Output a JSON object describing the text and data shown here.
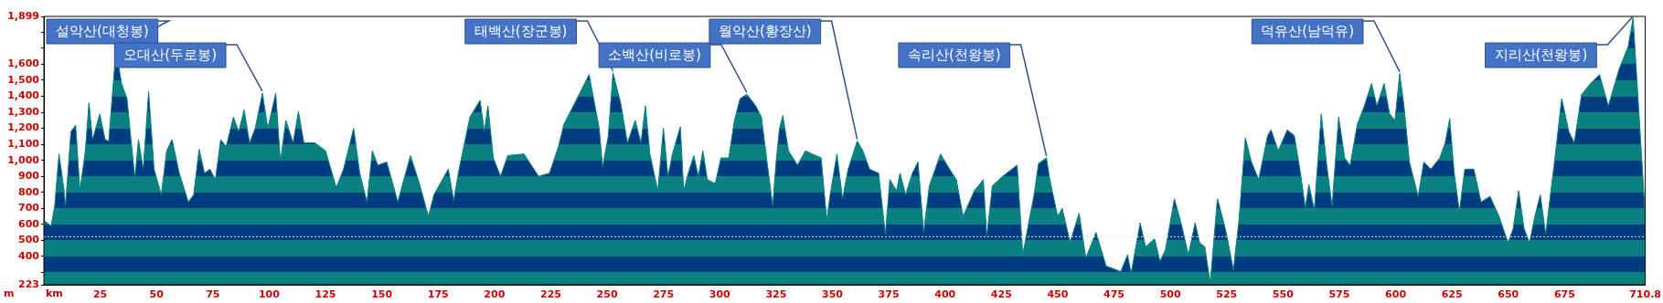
{
  "chart_data": {
    "type": "area",
    "xlabel": "km",
    "ylabel": "m",
    "xlim": [
      0,
      710.8
    ],
    "xticks": [
      25,
      50,
      75,
      100,
      125,
      150,
      175,
      200,
      225,
      250,
      275,
      300,
      325,
      350,
      375,
      400,
      425,
      450,
      475,
      500,
      525,
      550,
      575,
      600,
      625,
      650,
      675,
      710.8
    ],
    "ylim": [
      223,
      1899
    ],
    "yticks": [
      223,
      {
        "value": 300,
        "label": null
      },
      400,
      500,
      600,
      700,
      800,
      900,
      {
        "value": 1000,
        "label": "1,000"
      },
      {
        "value": 1100,
        "label": "1,100"
      },
      {
        "value": 1200,
        "label": "1,200"
      },
      {
        "value": 1300,
        "label": "1,300"
      },
      {
        "value": 1400,
        "label": "1,400"
      },
      {
        "value": 1500,
        "label": "1,500"
      },
      {
        "value": 1600,
        "label": "1,600"
      },
      {
        "value": 1700,
        "label": null
      },
      {
        "value": 1800,
        "label": null
      },
      {
        "value": 1899,
        "label": "1,899"
      }
    ],
    "series": [
      {
        "color": "#0a8080",
        "x": [
          0,
          3.2,
          4.8,
          6.7,
          8.8,
          9.6,
          12,
          14.1,
          16,
          18.4,
          20,
          21.6,
          24.8,
          27.2,
          28.8,
          30.4,
          32,
          34.5,
          36.9,
          38.8,
          40.4,
          42,
          44.1,
          46.5,
          48.9,
          52.1,
          54.5,
          56.9,
          60.1,
          64.1,
          66.5,
          68.9,
          71.3,
          73.7,
          76.1,
          78.5,
          80.9,
          84.1,
          86.5,
          88.9,
          91.3,
          93.8,
          97,
          99.4,
          102.9,
          105,
          107.4,
          110.6,
          113,
          115.4,
          120.2,
          125,
          129.8,
          133,
          137.5,
          140.2,
          143.4,
          145.8,
          148.2,
          152.2,
          157.1,
          162.7,
          166.7,
          170.7,
          173.1,
          179.5,
          181.9,
          184.3,
          189.1,
          193.6,
          195.5,
          197.1,
          199.5,
          202.7,
          205.9,
          213.1,
          219.6,
          224.4,
          228.4,
          230.8,
          235,
          242,
          246.5,
          248,
          250.5,
          252.6,
          256,
          259,
          262.5,
          265,
          267,
          269,
          272.5,
          275,
          277,
          279,
          282.5,
          284,
          286,
          288.5,
          290.5,
          292.5,
          294.5,
          298,
          300.5,
          304,
          306.5,
          309,
          312,
          316,
          318.5,
          321,
          323.5,
          325,
          326.5,
          328,
          330.5,
          334.5,
          338,
          341,
          345,
          347.5,
          349,
          352,
          354.5,
          357,
          361,
          363.5,
          366.5,
          370.5,
          373.5,
          375.5,
          378.5,
          380,
          382.5,
          385.5,
          388,
          390.5,
          393,
          398,
          402,
          405,
          408,
          413,
          417,
          418.5,
          421,
          425.5,
          432,
          434.5,
          437,
          439.5,
          441.5,
          445,
          446.5,
          450,
          452,
          455.5,
          459.5,
          462.5,
          467,
          471.5,
          478,
          481,
          482.6,
          486.6,
          489,
          493,
          495.4,
          497.8,
          501.8,
          505,
          508,
          511,
          513,
          515.3,
          517.7,
          520.9,
          523.2,
          524.8,
          528,
          530.4,
          533.3,
          536,
          539.2,
          543.2,
          544.7,
          547.9,
          551.9,
          555,
          557.5,
          559.9,
          561.5,
          563.9,
          567,
          569.4,
          571.8,
          574.7,
          577.4,
          579.8,
          583,
          586.1,
          589.3,
          591.7,
          594.9,
          597.3,
          599.7,
          601.8,
          603.7,
          606.1,
          610,
          612.5,
          615.6,
          619.6,
          622,
          624,
          626,
          628.3,
          630.7,
          634.7,
          637.9,
          641.9,
          645.9,
          649.9,
          652.2,
          654.6,
          657,
          659.4,
          661.8,
          664.2,
          666.6,
          670.5,
          673.7,
          676.9,
          679.3,
          682.5,
          686.5,
          690.5,
          694.4,
          699.2,
          703.2,
          705.4,
          707.1,
          708.8,
          710.8
        ],
        "values": [
          625,
          590,
          715,
          1040,
          830,
          715,
          1180,
          1220,
          810,
          1060,
          1360,
          1130,
          1290,
          1130,
          1120,
          1410,
          1690,
          1480,
          1385,
          1110,
          890,
          1130,
          945,
          1430,
          945,
          785,
          1060,
          1130,
          920,
          740,
          785,
          1070,
          920,
          945,
          880,
          1130,
          1085,
          1270,
          1180,
          1315,
          1110,
          1200,
          1420,
          1200,
          1420,
          990,
          1250,
          1110,
          1305,
          1110,
          1110,
          1060,
          830,
          945,
          1200,
          920,
          740,
          1060,
          970,
          990,
          740,
          1030,
          855,
          650,
          785,
          945,
          750,
          945,
          1270,
          1375,
          1180,
          1340,
          1015,
          900,
          1030,
          1040,
          900,
          920,
          1085,
          1225,
          1340,
          1535,
          1200,
          960,
          1150,
          1547,
          1360,
          1110,
          1250,
          1110,
          1340,
          1040,
          810,
          1200,
          900,
          1040,
          1210,
          810,
          920,
          1030,
          900,
          1060,
          880,
          855,
          1015,
          1015,
          1250,
          1385,
          1413,
          1340,
          1270,
          990,
          715,
          990,
          1200,
          1280,
          1060,
          970,
          1060,
          1040,
          1015,
          625,
          785,
          1040,
          760,
          945,
          1120,
          1060,
          945,
          920,
          540,
          880,
          810,
          920,
          785,
          920,
          990,
          550,
          840,
          1040,
          945,
          880,
          650,
          810,
          880,
          525,
          840,
          900,
          970,
          410,
          600,
          785,
          980,
          1016,
          880,
          650,
          700,
          490,
          670,
          390,
          550,
          340,
          305,
          410,
          295,
          610,
          460,
          510,
          370,
          440,
          760,
          595,
          410,
          610,
          485,
          460,
          235,
          760,
          640,
          550,
          315,
          620,
          1140,
          990,
          880,
          1155,
          1190,
          1060,
          1190,
          1155,
          945,
          705,
          850,
          690,
          1290,
          970,
          715,
          1270,
          1015,
          970,
          1225,
          1340,
          1480,
          1340,
          1480,
          1290,
          1250,
          1542,
          1340,
          990,
          775,
          990,
          945,
          1015,
          1110,
          1260,
          920,
          680,
          945,
          945,
          740,
          775,
          650,
          485,
          575,
          810,
          575,
          485,
          650,
          785,
          540,
          990,
          1385,
          1180,
          1110,
          1410,
          1480,
          1535,
          1340,
          1570,
          1710,
          1889,
          1500,
          1110,
          650
        ]
      }
    ],
    "ref_lines": [
      {
        "axis": "y",
        "value": 523,
        "color": "#e0e0e0",
        "line_style": "dotted"
      }
    ],
    "annotations": [
      {
        "text": "설악산(대청봉)",
        "x": 32,
        "y": 1690
      },
      {
        "text": "오대산(두로봉)",
        "x": 97,
        "y": 1420
      },
      {
        "text": "태백산(장군봉)",
        "x": 252.6,
        "y": 1547
      },
      {
        "text": "소백산(비로봉)",
        "x": 312,
        "y": 1413
      },
      {
        "text": "월악산(황장산)",
        "x": 361,
        "y": 1120
      },
      {
        "text": "속리산(천왕봉)",
        "x": 445,
        "y": 1016
      },
      {
        "text": "덕유산(남덕유)",
        "x": 601.8,
        "y": 1542
      },
      {
        "text": "지리산(천왕봉)",
        "x": 705.4,
        "y": 1889
      }
    ]
  }
}
